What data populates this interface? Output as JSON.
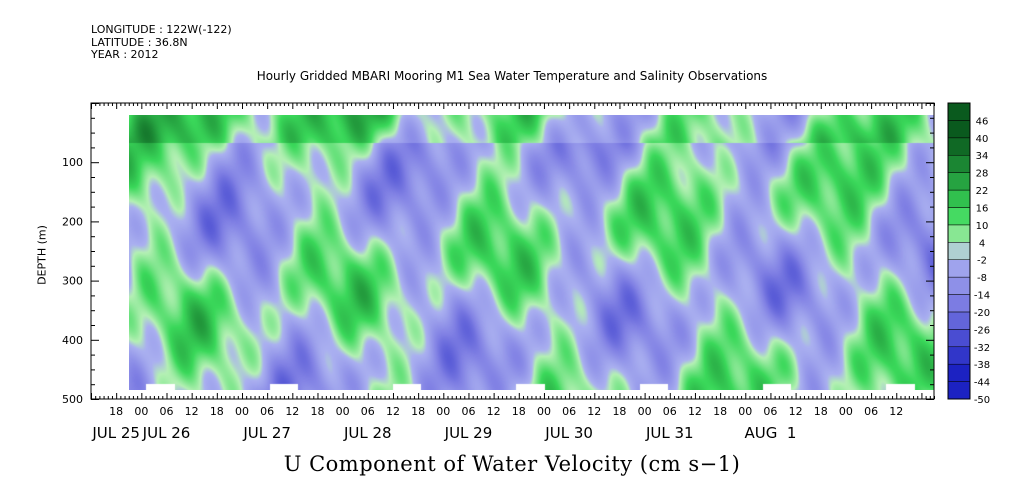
{
  "header": {
    "longitude": "LONGITUDE : 122W(-122)",
    "latitude": "LATITUDE : 36.8N",
    "year": "YEAR : 2012"
  },
  "chart_data": {
    "type": "heatmap",
    "title": "Hourly Gridded MBARI Mooring M1 Sea Water Temperature and Salinity Observations",
    "xlabel": "U Component of Water Velocity (cm s−1)",
    "ylabel": "DEPTH (m)",
    "x_range_hours": [
      -12,
      189
    ],
    "data_x_range_hours": [
      -3,
      189
    ],
    "y_range_m": [
      0,
      500
    ],
    "data_y_range_m": [
      20,
      485
    ],
    "y_reversed": true,
    "y_ticks": [
      100,
      200,
      300,
      400,
      500
    ],
    "y_tick_labels": [
      "100",
      "200",
      "300",
      "400",
      "500"
    ],
    "hour_labels": [
      "18",
      "00",
      "06",
      "12",
      "18",
      "00",
      "06",
      "12",
      "18",
      "00",
      "06",
      "12",
      "18",
      "00",
      "06",
      "12",
      "18",
      "00",
      "06",
      "12",
      "18",
      "00",
      "06",
      "12",
      "18",
      "00",
      "06",
      "12",
      "18",
      "00",
      "06",
      "12"
    ],
    "day_labels": [
      "JUL 25",
      "JUL 26",
      "JUL 27",
      "JUL 28",
      "JUL 29",
      "JUL 30",
      "JUL 31",
      "AUG  1"
    ],
    "colorbar": {
      "levels": [
        -50,
        -44,
        -38,
        -32,
        -26,
        -20,
        -14,
        -8,
        -2,
        4,
        10,
        16,
        22,
        28,
        34,
        40,
        46
      ],
      "level_labels": [
        "-50",
        "-44",
        "-38",
        "-32",
        "-26",
        "-20",
        "-14",
        "-8",
        "-2",
        "4",
        "10",
        "16",
        "22",
        "28",
        "34",
        "40",
        "46"
      ]
    },
    "colors": {
      "negative_light": "#aab0f0",
      "negative_mid": "#8080e4",
      "negative_dark": "#1c22c2",
      "near_zero": "#b4f0b4",
      "positive_mid": "#3ad85a",
      "positive_dark": "#0a5a1e",
      "missing": "#ffffff"
    },
    "grid": false,
    "legend": "colorbar-right"
  }
}
